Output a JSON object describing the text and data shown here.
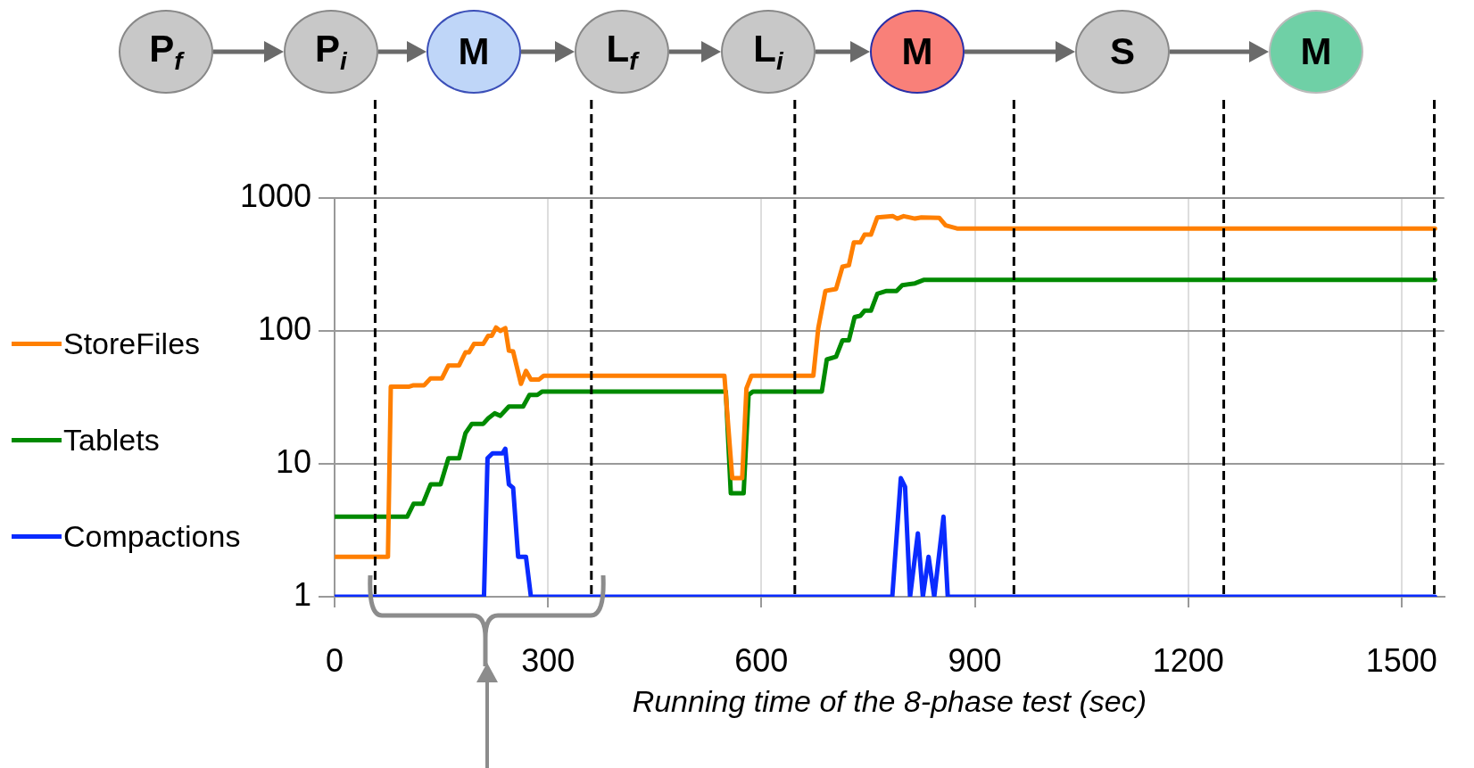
{
  "chart_data": {
    "type": "line",
    "xlabel": "Running time of the 8-phase test (sec)",
    "annotations": [
      "P$_{f}$",
      "P$_{i}$",
      "M",
      "L$_{f}$",
      "L$_{i}$",
      "M",
      "S",
      "M"
    ],
    "xlim": [
      0,
      1560
    ],
    "xticks": [
      0,
      300,
      600,
      900,
      1200,
      1500
    ],
    "ylim": [
      1,
      1000
    ],
    "yticks": [
      1,
      10,
      100,
      1000
    ],
    "log": "y",
    "grid": true,
    "legend": "left",
    "marker": "none",
    "line_style": "solid",
    "ref_lines": [
      {
        "axis": "x",
        "value": 57,
        "color": "#000000",
        "line_style": "dashed"
      },
      {
        "axis": "x",
        "value": 361,
        "color": "#000000",
        "line_style": "dashed"
      },
      {
        "axis": "x",
        "value": 647,
        "color": "#000000",
        "line_style": "dashed"
      },
      {
        "axis": "x",
        "value": 955,
        "color": "#000000",
        "line_style": "dashed"
      },
      {
        "axis": "x",
        "value": 1250,
        "color": "#000000",
        "line_style": "dashed"
      },
      {
        "axis": "x",
        "value": 1546,
        "color": "#000000",
        "line_style": "dashed"
      }
    ],
    "series": [
      {
        "name": "StoreFiles",
        "color": "#ff7f00",
        "x": [
          0,
          75,
          79,
          104,
          111,
          126,
          135,
          151,
          160,
          175,
          184,
          189,
          196,
          209,
          216,
          221,
          227,
          233,
          240,
          245,
          251,
          262,
          269,
          276,
          287,
          294,
          548,
          559,
          573,
          579,
          586,
          673,
          680,
          690,
          705,
          714,
          723,
          730,
          739,
          745,
          754,
          763,
          785,
          791,
          800,
          816,
          825,
          850,
          859,
          875,
          1547
        ],
        "values": [
          2,
          2,
          38,
          38,
          39,
          39,
          44,
          44,
          55,
          55,
          69,
          69,
          80,
          80,
          92,
          92,
          106,
          100,
          105,
          71,
          70,
          40,
          50,
          43,
          43,
          46,
          46,
          7.8,
          7.8,
          37,
          46,
          46,
          105,
          200,
          207,
          304,
          312,
          463,
          463,
          530,
          530,
          715,
          730,
          700,
          730,
          700,
          715,
          710,
          623,
          590,
          590
        ]
      },
      {
        "name": "Tablets",
        "color": "#008a00",
        "x": [
          0,
          102,
          111,
          124,
          135,
          149,
          160,
          175,
          184,
          193,
          209,
          216,
          225,
          233,
          245,
          265,
          274,
          285,
          292,
          550,
          557,
          575,
          582,
          588,
          685,
          692,
          705,
          714,
          723,
          731,
          739,
          745,
          754,
          763,
          776,
          790,
          798,
          816,
          828,
          1547
        ],
        "values": [
          4,
          4,
          5,
          5,
          7,
          7,
          11,
          11,
          17,
          20,
          20,
          22,
          24,
          23,
          27,
          27,
          33,
          33,
          35,
          35,
          6,
          6,
          33,
          35,
          35,
          61,
          64,
          85,
          85,
          127,
          130,
          142,
          142,
          190,
          200,
          200,
          221,
          228,
          242,
          242
        ]
      },
      {
        "name": "Compactions",
        "color": "#0a2bff",
        "x": [
          0,
          210,
          215,
          222,
          236,
          240,
          245,
          251,
          258,
          269,
          276,
          784,
          796,
          802,
          809,
          820,
          827,
          835,
          843,
          856,
          862,
          1547
        ],
        "values": [
          1,
          1,
          11,
          12,
          12,
          13,
          7,
          6.6,
          2,
          2,
          1,
          1,
          7.8,
          6.7,
          1,
          3,
          1,
          2,
          1,
          4,
          1,
          1
        ]
      }
    ]
  }
}
